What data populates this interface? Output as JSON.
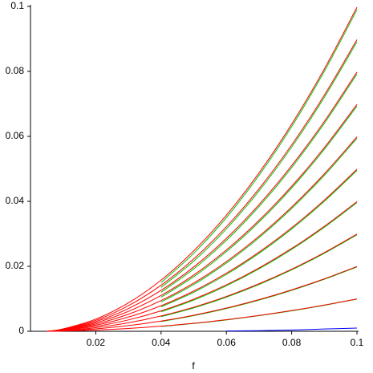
{
  "chart_data": {
    "type": "line",
    "xlabel": "f",
    "x": [
      0.005,
      0.01,
      0.02,
      0.03,
      0.04,
      0.05,
      0.06,
      0.07,
      0.08,
      0.09,
      0.1
    ],
    "xlim": [
      0,
      0.1
    ],
    "ylim": [
      0,
      0.1
    ],
    "xticks": [
      0.02,
      0.04,
      0.06,
      0.08,
      0.1
    ],
    "yticks": [
      0,
      0.02,
      0.04,
      0.06,
      0.08,
      0.1
    ],
    "series": [
      {
        "color": "#00c000",
        "values": [
          null,
          null,
          null,
          null,
          0.0015,
          0.0024,
          0.0035,
          0.0048,
          0.0063,
          0.008,
          0.0099
        ]
      },
      {
        "color": "#00c000",
        "values": [
          null,
          null,
          null,
          null,
          0.003,
          0.0048,
          0.007,
          0.0096,
          0.0126,
          0.016,
          0.0198
        ]
      },
      {
        "color": "#00c000",
        "values": [
          null,
          null,
          null,
          null,
          0.0045,
          0.0072,
          0.0105,
          0.0144,
          0.0189,
          0.024,
          0.0297
        ]
      },
      {
        "color": "#00c000",
        "values": [
          null,
          null,
          null,
          null,
          0.006,
          0.0096,
          0.014,
          0.0192,
          0.0252,
          0.032,
          0.0396
        ]
      },
      {
        "color": "#00c000",
        "values": [
          null,
          null,
          null,
          null,
          0.0075,
          0.012,
          0.0175,
          0.024,
          0.0315,
          0.04,
          0.0495
        ]
      },
      {
        "color": "#00c000",
        "values": [
          null,
          null,
          null,
          null,
          0.009,
          0.0144,
          0.021,
          0.0288,
          0.0378,
          0.048,
          0.0594
        ]
      },
      {
        "color": "#00c000",
        "values": [
          null,
          null,
          null,
          null,
          0.0105,
          0.0168,
          0.0245,
          0.0336,
          0.0441,
          0.056,
          0.0693
        ]
      },
      {
        "color": "#00c000",
        "values": [
          null,
          null,
          null,
          null,
          0.012,
          0.0192,
          0.028,
          0.0384,
          0.0504,
          0.064,
          0.0792
        ]
      },
      {
        "color": "#00c000",
        "values": [
          null,
          null,
          null,
          null,
          0.0135,
          0.0216,
          0.0315,
          0.0432,
          0.0567,
          0.072,
          0.0891
        ]
      },
      {
        "color": "#00c000",
        "values": [
          null,
          null,
          null,
          null,
          0.015,
          0.024,
          0.035,
          0.048,
          0.063,
          0.08,
          0.099
        ]
      },
      {
        "color": "#ff0000",
        "values": [
          0,
          7.5e-05,
          0.000375,
          0.000875,
          0.001575,
          0.002475,
          0.003575,
          0.004875,
          0.006375,
          0.008075,
          0.009975
        ]
      },
      {
        "color": "#ff0000",
        "values": [
          0,
          0.00015,
          0.00075,
          0.00175,
          0.00315,
          0.00495,
          0.00715,
          0.00975,
          0.01275,
          0.01615,
          0.01995
        ]
      },
      {
        "color": "#ff0000",
        "values": [
          0,
          0.000225,
          0.001125,
          0.002625,
          0.004725,
          0.007425,
          0.010725,
          0.014625,
          0.019125,
          0.024225,
          0.029925
        ]
      },
      {
        "color": "#ff0000",
        "values": [
          0,
          0.0003,
          0.0015,
          0.0035,
          0.0063,
          0.0099,
          0.0143,
          0.0195,
          0.0255,
          0.0323,
          0.0399
        ]
      },
      {
        "color": "#ff0000",
        "values": [
          0,
          0.000375,
          0.001875,
          0.004375,
          0.007875,
          0.012375,
          0.017875,
          0.024375,
          0.031875,
          0.040375,
          0.049875
        ]
      },
      {
        "color": "#ff0000",
        "values": [
          0,
          0.00045,
          0.00225,
          0.00525,
          0.00945,
          0.01485,
          0.02145,
          0.02925,
          0.03825,
          0.04845,
          0.05985
        ]
      },
      {
        "color": "#ff0000",
        "values": [
          0,
          0.000525,
          0.002625,
          0.006125,
          0.011025,
          0.017325,
          0.025025,
          0.034125,
          0.044625,
          0.056525,
          0.069825
        ]
      },
      {
        "color": "#ff0000",
        "values": [
          0,
          0.0006,
          0.003,
          0.007,
          0.0126,
          0.0198,
          0.0286,
          0.039,
          0.051,
          0.0646,
          0.0798
        ]
      },
      {
        "color": "#ff0000",
        "values": [
          0,
          0.000675,
          0.003375,
          0.007875,
          0.014175,
          0.022275,
          0.032175,
          0.043875,
          0.057375,
          0.072675,
          0.089775
        ]
      },
      {
        "color": "#ff0000",
        "values": [
          0,
          0.00075,
          0.00375,
          0.00875,
          0.01575,
          0.02475,
          0.03575,
          0.04875,
          0.06375,
          0.08075,
          0.09975
        ]
      },
      {
        "color": "#0000ff",
        "values": [
          null,
          null,
          null,
          null,
          null,
          null,
          0.0001,
          0.0002,
          0.0004,
          0.0007,
          0.001
        ]
      }
    ]
  }
}
